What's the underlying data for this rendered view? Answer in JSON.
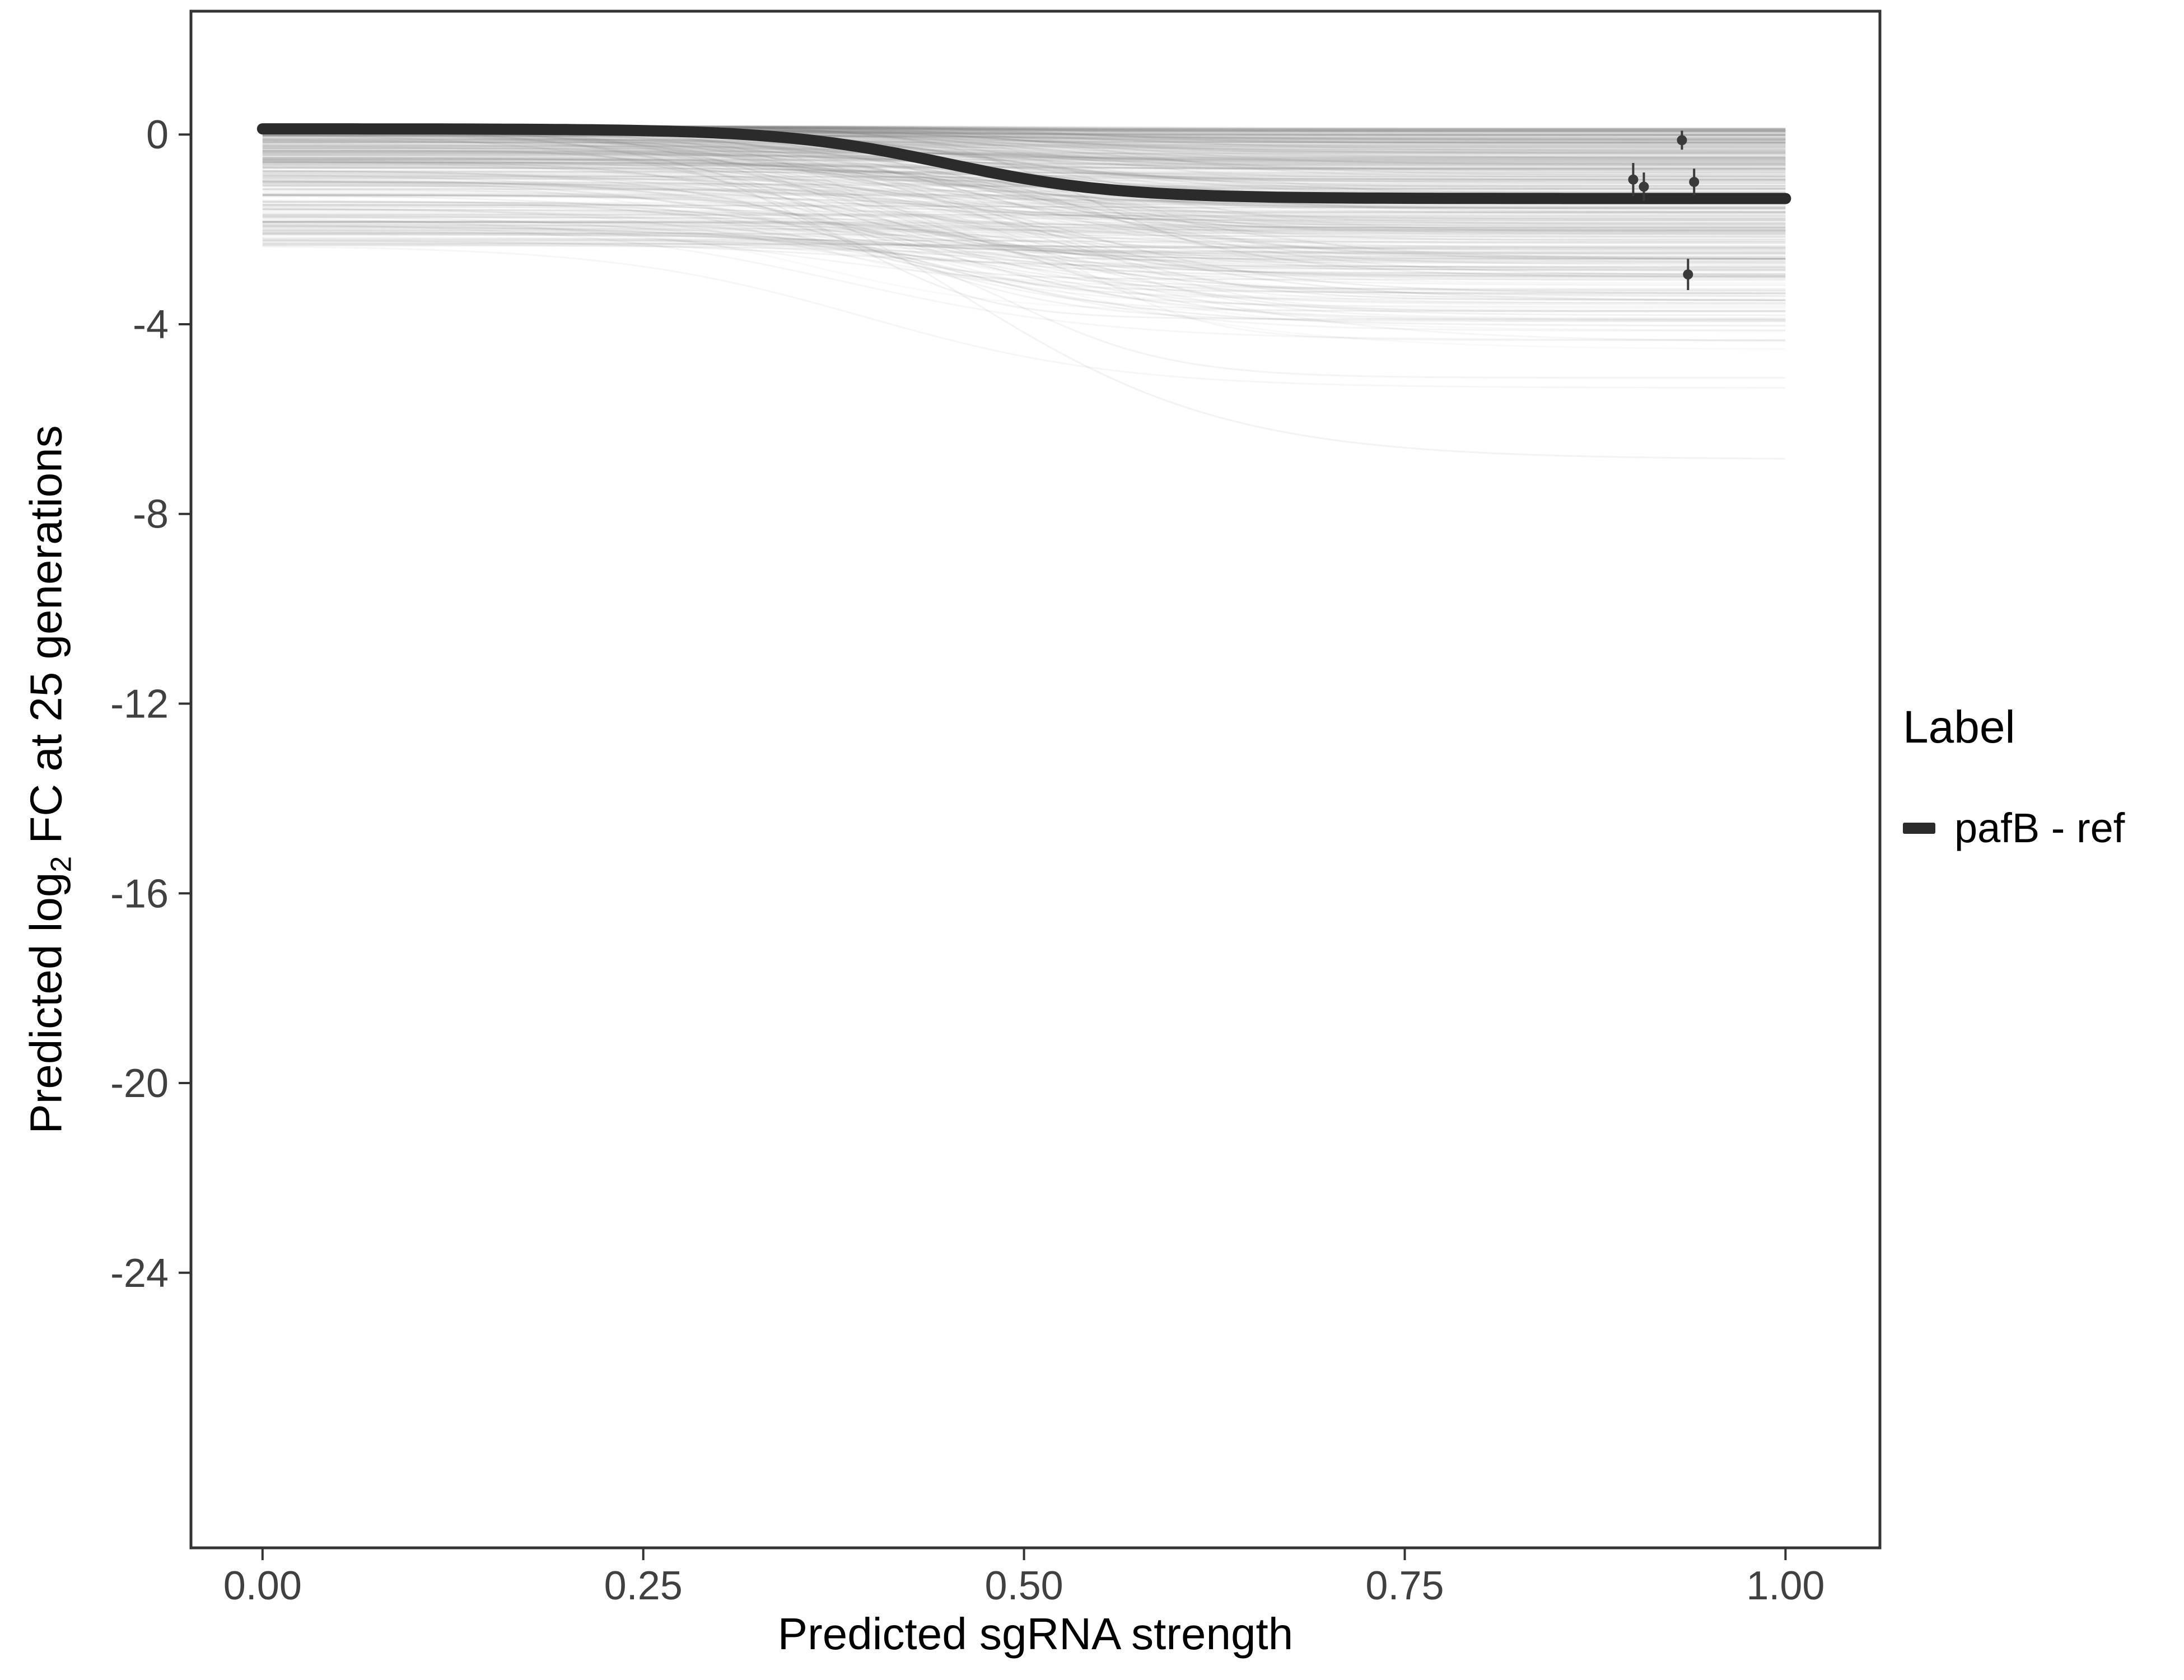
{
  "figure": {
    "background": "#FFFFFF",
    "panel_border_color": "#333333",
    "tick_color": "#333333",
    "tick_label_color": "#404040"
  },
  "chart_data": {
    "type": "line",
    "title": "",
    "xlabel": "Predicted sgRNA strength",
    "ylabel_parts": {
      "pre": "Predicted log",
      "sub": "2",
      "post": " FC at 25 generations"
    },
    "xlim": [
      -0.047,
      1.062
    ],
    "ylim": [
      -29.8,
      2.6
    ],
    "grid": false,
    "x_tick_labels": [
      "0.00",
      "0.25",
      "0.50",
      "0.75",
      "1.00"
    ],
    "x_tick_values": [
      0,
      0.25,
      0.5,
      0.75,
      1.0
    ],
    "y_tick_labels": [
      "0",
      "-4",
      "-8",
      "-12",
      "-16",
      "-20",
      "-24"
    ],
    "y_tick_values": [
      0,
      -4,
      -8,
      -12,
      -16,
      -20,
      -24
    ],
    "main_curve": {
      "label": "pafB - ref",
      "color": "#2b2b2b",
      "stroke_width": 20,
      "sigmoid": {
        "y_start": 0.12,
        "y_end": -1.35,
        "midpoint": 0.45,
        "slope": 0.055
      }
    },
    "background_curves": {
      "description": "ensemble of posterior sample response curves",
      "count": 420,
      "seed": 7,
      "color": "#7d7d7d",
      "stroke_width": 3,
      "y_start_range": [
        -2.35,
        0.18
      ],
      "drop_range": [
        0.05,
        3.2
      ],
      "rare_deep_drop_range": [
        4.2,
        7.1
      ],
      "rare_deep_drop_prob": 0.008,
      "midpoint_range": [
        0.33,
        0.58
      ],
      "slope_range": [
        0.04,
        0.09
      ]
    },
    "points": [
      {
        "x": 0.9,
        "y": -0.95,
        "err": 0.35
      },
      {
        "x": 0.907,
        "y": -1.1,
        "err": 0.3
      },
      {
        "x": 0.932,
        "y": -0.12,
        "err": 0.2
      },
      {
        "x": 0.94,
        "y": -1.0,
        "err": 0.28
      },
      {
        "x": 0.936,
        "y": -2.95,
        "err": 0.33
      }
    ],
    "points_color": "#3a3a3a",
    "legend": {
      "position": "right",
      "title": "Label",
      "entries": [
        {
          "label": "pafB - ref",
          "color": "#2b2b2b"
        }
      ]
    }
  }
}
